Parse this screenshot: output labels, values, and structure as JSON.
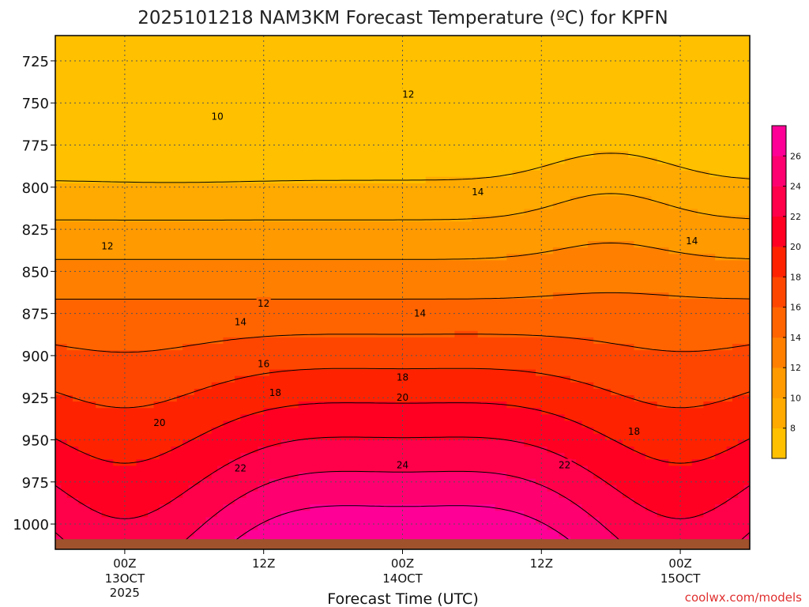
{
  "chart_data": {
    "type": "heatmap",
    "title": "2025101218 NAM3KM Forecast Temperature (ºC) for KPFN",
    "xlabel": "Forecast Time (UTC)",
    "ylabel": "",
    "credit": "coolwx.com/models",
    "y_pressure_ticks": [
      "725",
      "750",
      "775",
      "800",
      "825",
      "850",
      "875",
      "900",
      "925",
      "950",
      "975",
      "1000"
    ],
    "x_ticks": [
      {
        "hour": 6,
        "label": "00Z",
        "sub1": "13OCT",
        "sub2": "2025"
      },
      {
        "hour": 18,
        "label": "12Z",
        "sub1": "",
        "sub2": ""
      },
      {
        "hour": 30,
        "label": "00Z",
        "sub1": "14OCT",
        "sub2": ""
      },
      {
        "hour": 42,
        "label": "12Z",
        "sub1": "",
        "sub2": ""
      },
      {
        "hour": 54,
        "label": "00Z",
        "sub1": "15OCT",
        "sub2": ""
      }
    ],
    "colorbar": {
      "bins": [
        {
          "from": 6,
          "to": 8,
          "color": "#FFC000"
        },
        {
          "from": 8,
          "to": 10,
          "color": "#FFAA00"
        },
        {
          "from": 10,
          "to": 12,
          "color": "#FF9A00"
        },
        {
          "from": 12,
          "to": 14,
          "color": "#FF8000"
        },
        {
          "from": 14,
          "to": 16,
          "color": "#FF6400"
        },
        {
          "from": 16,
          "to": 18,
          "color": "#FF4600"
        },
        {
          "from": 18,
          "to": 20,
          "color": "#FF2200"
        },
        {
          "from": 20,
          "to": 22,
          "color": "#FF0022"
        },
        {
          "from": 22,
          "to": 24,
          "color": "#FF004A"
        },
        {
          "from": 24,
          "to": 26,
          "color": "#FF0070"
        },
        {
          "from": 26,
          "to": 28,
          "color": "#FF0096"
        }
      ],
      "tick_labels": [
        "8",
        "10",
        "12",
        "14",
        "16",
        "18",
        "20",
        "22",
        "24",
        "26"
      ]
    },
    "contour_labels": [
      {
        "value": "10",
        "hour": 14.0,
        "p": 758
      },
      {
        "value": "12",
        "hour": 4.5,
        "p": 835
      },
      {
        "value": "12",
        "hour": 18.0,
        "p": 869
      },
      {
        "value": "12",
        "hour": 30.5,
        "p": 745
      },
      {
        "value": "14",
        "hour": 16.0,
        "p": 880
      },
      {
        "value": "14",
        "hour": 31.5,
        "p": 875
      },
      {
        "value": "14",
        "hour": 36.5,
        "p": 803
      },
      {
        "value": "14",
        "hour": 55.0,
        "p": 832
      },
      {
        "value": "16",
        "hour": 18.0,
        "p": 905
      },
      {
        "value": "18",
        "hour": 19.0,
        "p": 922
      },
      {
        "value": "18",
        "hour": 30.0,
        "p": 913
      },
      {
        "value": "18",
        "hour": 50.0,
        "p": 945
      },
      {
        "value": "20",
        "hour": 9.0,
        "p": 940
      },
      {
        "value": "20",
        "hour": 30.0,
        "p": 925
      },
      {
        "value": "22",
        "hour": 16.0,
        "p": 967
      },
      {
        "value": "22",
        "hour": 44.0,
        "p": 965
      },
      {
        "value": "24",
        "hour": 30.0,
        "p": 965
      }
    ],
    "ylim": [
      710,
      1015
    ]
  }
}
